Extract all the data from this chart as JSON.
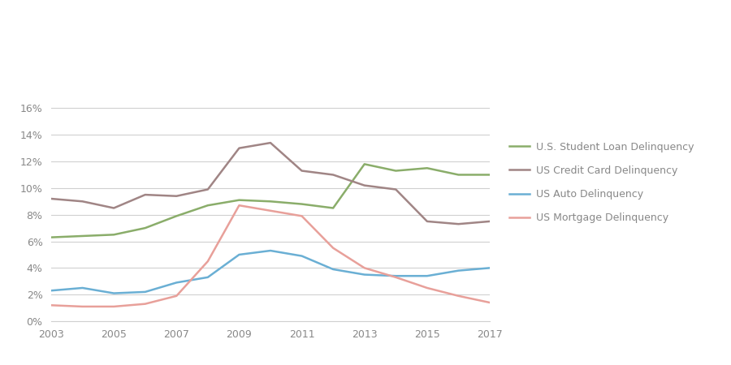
{
  "years": [
    2003,
    2004,
    2005,
    2006,
    2007,
    2008,
    2009,
    2010,
    2011,
    2012,
    2013,
    2014,
    2015,
    2016,
    2017
  ],
  "student_loan": [
    6.3,
    6.4,
    6.5,
    7.0,
    7.9,
    8.7,
    9.1,
    9.0,
    8.8,
    8.5,
    11.8,
    11.3,
    11.5,
    11.0,
    11.0
  ],
  "credit_card": [
    9.2,
    9.0,
    8.5,
    9.5,
    9.4,
    9.9,
    13.0,
    13.4,
    11.3,
    11.0,
    10.2,
    9.9,
    7.5,
    7.3,
    7.5
  ],
  "auto": [
    2.3,
    2.5,
    2.1,
    2.2,
    2.9,
    3.3,
    5.0,
    5.3,
    4.9,
    3.9,
    3.5,
    3.4,
    3.4,
    3.8,
    4.0
  ],
  "mortgage": [
    1.2,
    1.1,
    1.1,
    1.3,
    1.9,
    4.5,
    8.7,
    8.3,
    7.9,
    5.5,
    4.0,
    3.3,
    2.5,
    1.9,
    1.4
  ],
  "student_color": "#8aad6a",
  "credit_card_color": "#a08585",
  "auto_color": "#6aafd4",
  "mortgage_color": "#e8a09a",
  "background_color": "#ffffff",
  "grid_color": "#d0d0d0",
  "tick_color": "#888888",
  "ylim": [
    0,
    17
  ],
  "yticks": [
    0,
    2,
    4,
    6,
    8,
    10,
    12,
    14,
    16
  ],
  "xticks": [
    2003,
    2005,
    2007,
    2009,
    2011,
    2013,
    2015,
    2017
  ],
  "legend_labels": [
    "U.S. Student Loan Delinquency",
    "US Credit Card Delinquency",
    "US Auto Delinquency",
    "US Mortgage Delinquency"
  ],
  "line_width": 1.8
}
